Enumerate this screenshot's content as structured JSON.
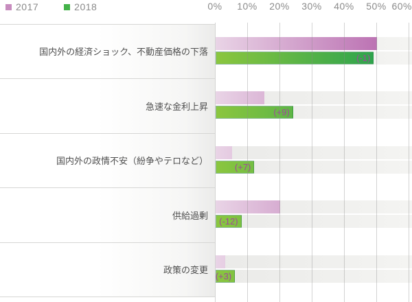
{
  "legend": {
    "items": [
      {
        "label": "2017",
        "color": "#c78cbe"
      },
      {
        "label": "2018",
        "color": "#44b249"
      }
    ]
  },
  "axis": {
    "ticks": [
      "0%",
      "10%",
      "20%",
      "30%",
      "40%",
      "50%",
      "60%"
    ]
  },
  "chart_data": {
    "type": "bar",
    "orientation": "horizontal",
    "title": "",
    "categories": [
      "国内外の経済ショック、不動産価格の下落",
      "急速な金利上昇",
      "国内外の政情不安（紛争やテロなど）",
      "供給過剰",
      "政策の変更"
    ],
    "series": [
      {
        "name": "2017",
        "values": [
          50,
          15,
          5,
          20,
          3
        ],
        "color": "#c78cbe"
      },
      {
        "name": "2018",
        "values": [
          49,
          24,
          12,
          8,
          6
        ],
        "color": "#44b249"
      }
    ],
    "diff_labels": [
      "(-1)",
      "(+9)",
      "(+7)",
      "(-12)",
      "(+3)"
    ],
    "xlim": [
      0,
      60
    ],
    "x_tick_step": 10,
    "unit": "%",
    "grid": true,
    "legend_position": "top-left",
    "diff_label_color": "#a1479c"
  }
}
